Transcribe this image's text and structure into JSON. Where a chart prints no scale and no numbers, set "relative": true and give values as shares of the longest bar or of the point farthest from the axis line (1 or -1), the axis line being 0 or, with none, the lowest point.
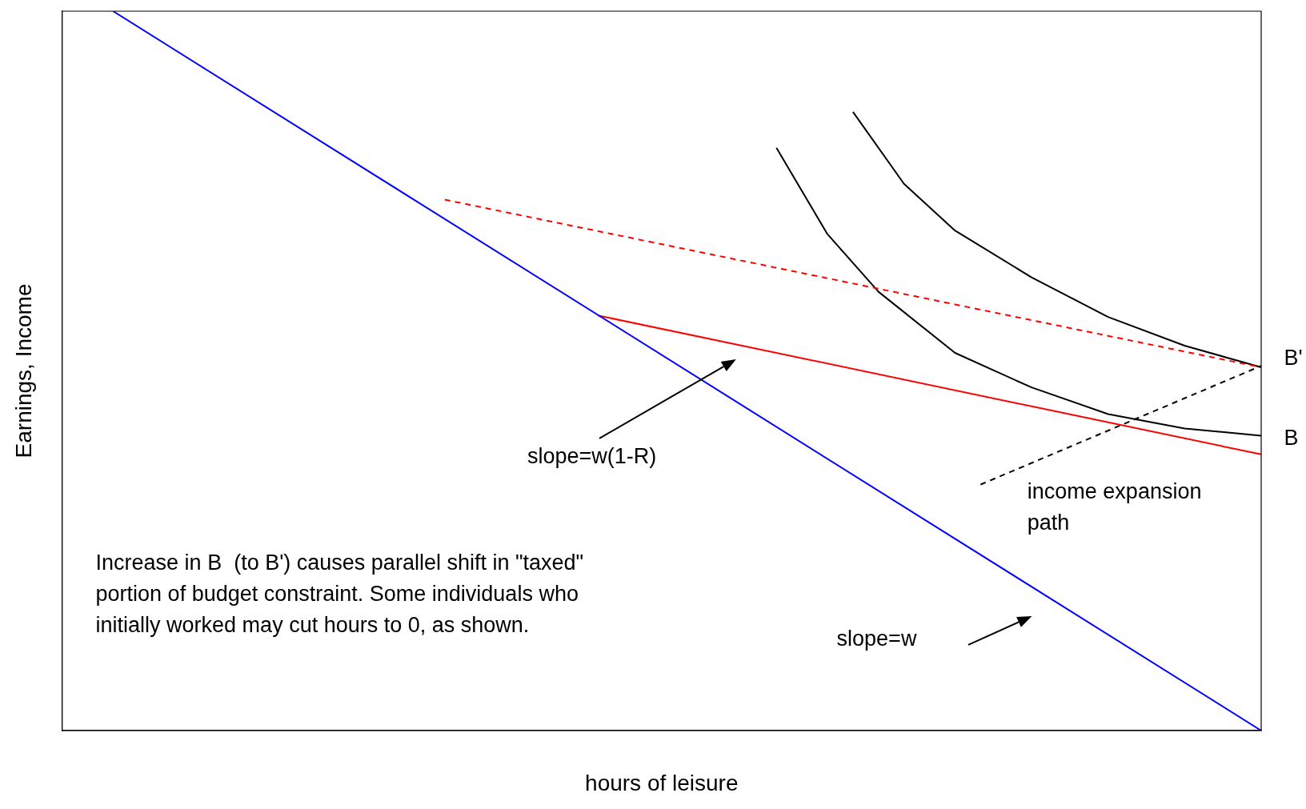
{
  "chart_data": {
    "type": "line",
    "relative": true,
    "xlabel": "hours of leisure",
    "ylabel": "Earnings, Income",
    "grid": false,
    "legend": false,
    "marker": "none",
    "categories": [
      null,
      null,
      null,
      null,
      null,
      null,
      null,
      null,
      null,
      null,
      null,
      null,
      null,
      null,
      null,
      null,
      null,
      null,
      null,
      null,
      null,
      null,
      null,
      null,
      null,
      null,
      null,
      null,
      null,
      null,
      null,
      null,
      null,
      null,
      null,
      null,
      null,
      null,
      null,
      null,
      null,
      null,
      null,
      null,
      null,
      null,
      null,
      null
    ],
    "series": [
      {
        "color": "#0000ff",
        "values": [
          null,
          null,
          1,
          null,
          null,
          null,
          null,
          null,
          null,
          null,
          null,
          null,
          null,
          null,
          null,
          null,
          null,
          null,
          null,
          null,
          null,
          null,
          null,
          null,
          null,
          null,
          null,
          null,
          null,
          null,
          null,
          null,
          null,
          null,
          null,
          null,
          null,
          null,
          null,
          null,
          null,
          null,
          null,
          null,
          null,
          null,
          null,
          0
        ]
      },
      {
        "color": "#ff0000",
        "values": [
          null,
          null,
          null,
          null,
          null,
          null,
          null,
          null,
          null,
          null,
          null,
          null,
          null,
          null,
          null,
          null,
          null,
          null,
          null,
          null,
          null,
          0.577,
          null,
          null,
          null,
          null,
          null,
          null,
          null,
          null,
          null,
          null,
          null,
          null,
          null,
          null,
          null,
          null,
          null,
          null,
          null,
          null,
          null,
          null,
          null,
          null,
          null,
          0.384
        ]
      },
      {
        "color": "#ff0000",
        "line_style": "dashed",
        "values": [
          null,
          null,
          null,
          null,
          null,
          null,
          null,
          null,
          null,
          null,
          null,
          null,
          null,
          null,
          null,
          0.738,
          null,
          null,
          null,
          null,
          null,
          null,
          null,
          null,
          null,
          null,
          null,
          null,
          null,
          null,
          null,
          null,
          null,
          null,
          null,
          null,
          null,
          null,
          null,
          null,
          null,
          null,
          null,
          null,
          null,
          null,
          null,
          0.505
        ]
      },
      {
        "color": "#000000",
        "line_style": "dashed",
        "values": [
          null,
          null,
          null,
          null,
          null,
          null,
          null,
          null,
          null,
          null,
          null,
          null,
          null,
          null,
          null,
          null,
          null,
          null,
          null,
          null,
          null,
          null,
          null,
          null,
          null,
          null,
          null,
          null,
          null,
          null,
          null,
          null,
          null,
          null,
          null,
          null,
          0.342,
          null,
          null,
          null,
          null,
          null,
          null,
          null,
          null,
          null,
          null,
          0.507
        ]
      },
      {
        "color": "#000000",
        "values": [
          null,
          null,
          null,
          null,
          null,
          null,
          null,
          null,
          null,
          null,
          null,
          null,
          null,
          null,
          null,
          null,
          null,
          null,
          null,
          null,
          null,
          null,
          null,
          null,
          null,
          null,
          null,
          null,
          0.81,
          null,
          0.69,
          null,
          0.61,
          null,
          null,
          0.525,
          null,
          null,
          0.477,
          null,
          null,
          0.44,
          null,
          null,
          0.42,
          null,
          null,
          0.41
        ]
      },
      {
        "color": "#000000",
        "values": [
          null,
          null,
          null,
          null,
          null,
          null,
          null,
          null,
          null,
          null,
          null,
          null,
          null,
          null,
          null,
          null,
          null,
          null,
          null,
          null,
          null,
          null,
          null,
          null,
          null,
          null,
          null,
          null,
          null,
          null,
          null,
          0.86,
          null,
          0.76,
          null,
          0.695,
          null,
          null,
          0.63,
          null,
          null,
          0.575,
          null,
          null,
          0.535,
          null,
          null,
          0.505
        ]
      }
    ],
    "annotations": [
      "B'",
      "B",
      "slope=w(1-R)",
      "slope=w",
      "income expansion path",
      "Increase in B  (to B') causes parallel shift in \"taxed\" portion of budget constraint. Some individuals who initially worked may cut hours to 0, as shown."
    ]
  }
}
